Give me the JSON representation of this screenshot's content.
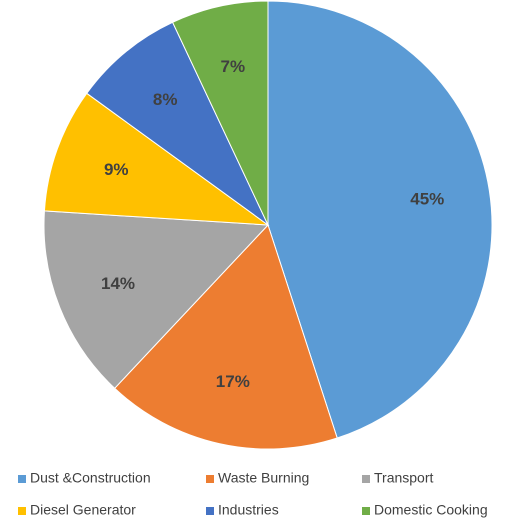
{
  "chart_data": {
    "type": "pie",
    "title": "",
    "categories": [
      "Dust &Construction",
      "Waste Burning",
      "Transport",
      "Diesel Generator",
      "Industries",
      "Domestic Cooking"
    ],
    "values": [
      45,
      17,
      14,
      9,
      8,
      7
    ],
    "labels": [
      "45%",
      "17%",
      "14%",
      "9%",
      "8%",
      "7%"
    ],
    "colors": [
      "#5b9bd5",
      "#ed7d31",
      "#a5a5a5",
      "#ffc000",
      "#4472c4",
      "#70ad47"
    ],
    "label_colors": [
      "#404040",
      "#404040",
      "#404040",
      "#404040",
      "#404040",
      "#404040"
    ],
    "start_angle_deg": 0,
    "direction": "clockwise",
    "legend_position": "bottom"
  }
}
